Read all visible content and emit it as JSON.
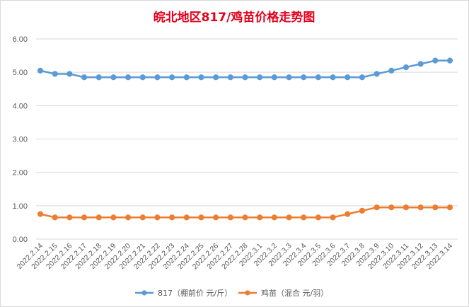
{
  "chart_data": {
    "type": "line",
    "title": "皖北地区817/鸡苗价格走势图",
    "categories": [
      "2022.2.14",
      "2022.2.15",
      "2022.2.16",
      "2022.2.17",
      "2022.2.18",
      "2022.2.19",
      "2022.2.20",
      "2022.2.21",
      "2022.2.22",
      "2022.2.23",
      "2022.2.24",
      "2022.2.25",
      "2022.2.26",
      "2022.2.27",
      "2022.2.28",
      "2022.3.1",
      "2022.3.2",
      "2022.3.3",
      "2022.3.4",
      "2022.3.5",
      "2022.3.6",
      "2022.3.7",
      "2022.3.8",
      "2022.3.9",
      "2022.3.10",
      "2022.3.11",
      "2022.3.12",
      "2022.3.13",
      "2022.3.14"
    ],
    "series": [
      {
        "name": "817（棚前价 元/斤）",
        "color": "#5b9bd5",
        "values": [
          5.05,
          4.95,
          4.95,
          4.85,
          4.85,
          4.85,
          4.85,
          4.85,
          4.85,
          4.85,
          4.85,
          4.85,
          4.85,
          4.85,
          4.85,
          4.85,
          4.85,
          4.85,
          4.85,
          4.85,
          4.85,
          4.85,
          4.85,
          4.95,
          5.05,
          5.15,
          5.25,
          5.35,
          5.35
        ]
      },
      {
        "name": "鸡苗（混合 元/羽）",
        "color": "#ed7d31",
        "values": [
          0.75,
          0.65,
          0.65,
          0.65,
          0.65,
          0.65,
          0.65,
          0.65,
          0.65,
          0.65,
          0.65,
          0.65,
          0.65,
          0.65,
          0.65,
          0.65,
          0.65,
          0.65,
          0.65,
          0.65,
          0.65,
          0.75,
          0.85,
          0.95,
          0.95,
          0.95,
          0.95,
          0.95,
          0.95
        ]
      }
    ],
    "yticks": [
      "0.00",
      "1.00",
      "2.00",
      "3.00",
      "4.00",
      "5.00",
      "6.00"
    ],
    "ylim": [
      0,
      6
    ],
    "grid": true,
    "legend": "bottom",
    "gridColor": "#d9d9d9"
  }
}
